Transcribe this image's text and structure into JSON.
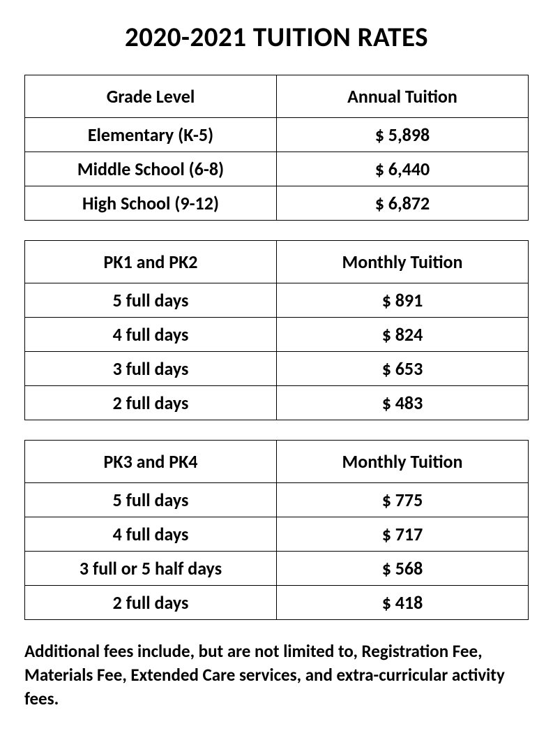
{
  "title": "2020-2021 TUITION RATES",
  "table1": {
    "header_left": "Grade Level",
    "header_right": "Annual Tuition",
    "rows": [
      {
        "label": "Elementary (K-5)",
        "value": "$ 5,898"
      },
      {
        "label": "Middle School (6-8)",
        "value": "$ 6,440"
      },
      {
        "label": "High School (9-12)",
        "value": "$ 6,872"
      }
    ]
  },
  "table2": {
    "header_left": "PK1 and PK2",
    "header_right": "Monthly  Tuition",
    "rows": [
      {
        "label": "5 full days",
        "value": "$ 891"
      },
      {
        "label": "4 full days",
        "value": "$ 824"
      },
      {
        "label": "3 full days",
        "value": "$ 653"
      },
      {
        "label": "2 full days",
        "value": "$ 483"
      }
    ]
  },
  "table3": {
    "header_left": "PK3 and PK4",
    "header_right": "Monthly Tuition",
    "rows": [
      {
        "label": "5 full days",
        "value": "$ 775"
      },
      {
        "label": "4 full days",
        "value": "$ 717"
      },
      {
        "label": "3 full or 5 half days",
        "value": "$ 568"
      },
      {
        "label": "2 full days",
        "value": "$ 418"
      }
    ]
  },
  "footer_note": "Additional fees include, but are not limited to, Registration Fee, Materials Fee, Extended Care services, and extra-curricular activity fees.",
  "colors": {
    "text": "#000000",
    "background": "#ffffff",
    "border": "#000000"
  },
  "typography": {
    "title_fontsize": 39,
    "cell_fontsize": 26,
    "footer_fontsize": 25,
    "font_weight": "bold"
  }
}
